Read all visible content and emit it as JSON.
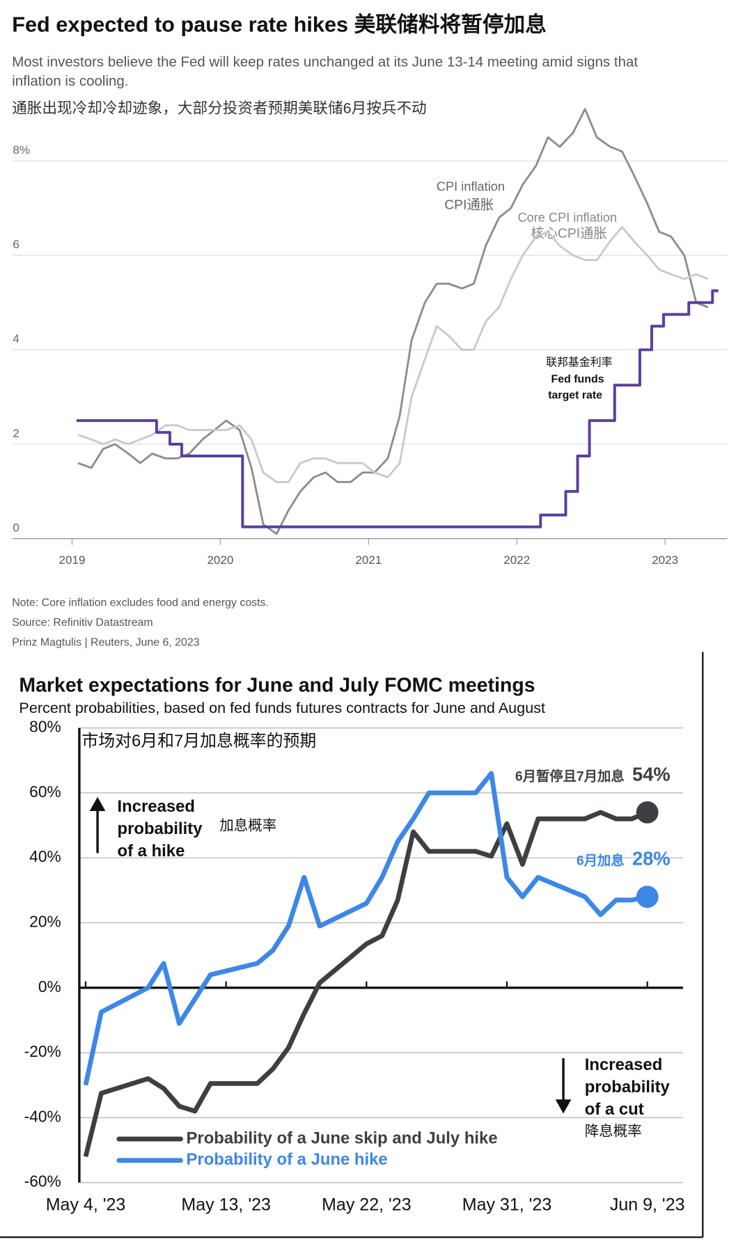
{
  "chart_data": [
    {
      "type": "line",
      "title": "Fed expected to pause rate hikes 美联储料将暂停加息",
      "subtitle": [
        "Most investors believe the Fed will keep rates unchanged at its June 13-14 meeting amid signs that",
        "inflation is cooling.",
        "通胀出现冷却冷却迹象，大部分投资者预期美联储6月按兵不动"
      ],
      "annotations": [
        "CPI inflation",
        "CPI通胀",
        "Core CPI inflation",
        "核心CPI通胀",
        "联邦基金利率",
        "Fed funds",
        "target rate"
      ],
      "notes": [
        "Note: Core inflation excludes food and energy costs.",
        "Source: Refinitiv Datastream",
        "Prinz Magtulis |  Reuters, June 6, 2023"
      ],
      "x": [
        2019.04,
        2019.13,
        2019.21,
        2019.29,
        2019.38,
        2019.46,
        2019.54,
        2019.63,
        2019.71,
        2019.79,
        2019.88,
        2019.96,
        2020.04,
        2020.13,
        2020.21,
        2020.29,
        2020.38,
        2020.46,
        2020.54,
        2020.63,
        2020.71,
        2020.79,
        2020.88,
        2020.96,
        2021.04,
        2021.13,
        2021.21,
        2021.29,
        2021.38,
        2021.46,
        2021.54,
        2021.63,
        2021.71,
        2021.79,
        2021.88,
        2021.96,
        2022.04,
        2022.13,
        2022.21,
        2022.29,
        2022.38,
        2022.46,
        2022.54,
        2022.63,
        2022.71,
        2022.79,
        2022.88,
        2022.96,
        2023.04,
        2023.13,
        2023.21,
        2023.29
      ],
      "series": [
        {
          "color": "#8c8c8c",
          "values": [
            1.6,
            1.5,
            1.9,
            2.0,
            1.8,
            1.6,
            1.8,
            1.7,
            1.7,
            1.8,
            2.1,
            2.3,
            2.5,
            2.3,
            1.5,
            0.3,
            0.1,
            0.6,
            1.0,
            1.3,
            1.4,
            1.2,
            1.2,
            1.4,
            1.4,
            1.7,
            2.6,
            4.2,
            5.0,
            5.4,
            5.4,
            5.3,
            5.4,
            6.2,
            6.8,
            7.0,
            7.5,
            7.9,
            8.5,
            8.3,
            8.6,
            9.1,
            8.5,
            8.3,
            8.2,
            7.7,
            7.1,
            6.5,
            6.4,
            6.0,
            5.0,
            4.9
          ]
        },
        {
          "color": "#c9c9c9",
          "values": [
            2.2,
            2.1,
            2.0,
            2.1,
            2.0,
            2.1,
            2.2,
            2.4,
            2.4,
            2.3,
            2.3,
            2.3,
            2.3,
            2.4,
            2.1,
            1.4,
            1.2,
            1.2,
            1.6,
            1.7,
            1.7,
            1.6,
            1.6,
            1.6,
            1.4,
            1.3,
            1.6,
            3.0,
            3.8,
            4.5,
            4.3,
            4.0,
            4.0,
            4.6,
            4.9,
            5.5,
            6.0,
            6.4,
            6.5,
            6.2,
            6.0,
            5.9,
            5.9,
            6.3,
            6.6,
            6.3,
            6.0,
            5.7,
            5.6,
            5.5,
            5.6,
            5.5
          ]
        },
        {
          "color": "#5b3f9e",
          "step": true,
          "x": [
            2019.03,
            2019.57,
            2019.66,
            2019.74,
            2020.15,
            2022.16,
            2022.33,
            2022.41,
            2022.49,
            2022.66,
            2022.83,
            2022.91,
            2022.99,
            2023.16,
            2023.32,
            2023.36
          ],
          "values": [
            2.5,
            2.25,
            2.0,
            1.75,
            0.25,
            0.5,
            1.0,
            1.75,
            2.5,
            3.25,
            4.0,
            4.5,
            4.75,
            5.0,
            5.25,
            5.25
          ]
        }
      ],
      "xlim": [
        2018.6,
        2023.42
      ],
      "xticks": [
        2019,
        2020,
        2021,
        2022,
        2023
      ],
      "ylim": [
        0,
        9
      ],
      "yticks": [
        0,
        2,
        4,
        6,
        {
          "value": 8,
          "label": "8%"
        }
      ],
      "grid": true
    },
    {
      "type": "line",
      "title": "Market expectations for June and July FOMC meetings",
      "subtitle": "Percent probabilities, based on fed funds futures contracts for June and August",
      "subtitle_zh": "市场对6月和7月加息概率的预期",
      "annotations": {
        "hike": [
          "Increased",
          "probability",
          "of a hike"
        ],
        "hike_zh": "加息概率",
        "cut": [
          "Increased",
          "probability",
          "of a cut"
        ],
        "cut_zh": "降息概率"
      },
      "x": [
        "2023-05-04",
        "2023-05-05",
        "2023-05-08",
        "2023-05-09",
        "2023-05-10",
        "2023-05-11",
        "2023-05-12",
        "2023-05-15",
        "2023-05-16",
        "2023-05-17",
        "2023-05-18",
        "2023-05-19",
        "2023-05-22",
        "2023-05-23",
        "2023-05-24",
        "2023-05-25",
        "2023-05-26",
        "2023-05-29",
        "2023-05-30",
        "2023-05-31",
        "2023-06-01",
        "2023-06-02",
        "2023-06-05",
        "2023-06-06",
        "2023-06-07",
        "2023-06-08",
        "2023-06-09"
      ],
      "series": [
        {
          "name": "Probability of a June skip and July hike",
          "color": "#3d3f42",
          "end_note": "6月暂停且7月加息",
          "values": [
            -52,
            -32.5,
            -28,
            -31,
            -36.5,
            -38,
            -29.5,
            -29.5,
            -25,
            -18.5,
            -8,
            1.5,
            13.5,
            16,
            27,
            48,
            42,
            42,
            40.5,
            50.5,
            38,
            52,
            52,
            54,
            52,
            52,
            54
          ],
          "value_labels": [
            null,
            null,
            null,
            null,
            null,
            null,
            null,
            null,
            null,
            null,
            null,
            null,
            null,
            null,
            null,
            null,
            null,
            null,
            null,
            null,
            null,
            null,
            null,
            null,
            null,
            null,
            "54%"
          ]
        },
        {
          "name": "Probability of a June hike",
          "color": "#3d87e6",
          "end_note": "6月加息",
          "values": [
            -30,
            -7.5,
            0,
            7.5,
            -11,
            -3.5,
            4,
            7.5,
            11.5,
            19,
            34,
            19,
            26,
            34,
            45,
            52,
            60,
            60,
            66,
            34,
            28,
            34,
            28,
            22.5,
            27,
            27,
            28
          ],
          "value_labels": [
            null,
            null,
            null,
            null,
            null,
            null,
            null,
            null,
            null,
            null,
            null,
            null,
            null,
            null,
            null,
            null,
            null,
            null,
            null,
            null,
            null,
            null,
            null,
            null,
            null,
            null,
            "28%"
          ]
        }
      ],
      "xlim": [
        "2023-05-04",
        "2023-06-09"
      ],
      "xticks": [
        {
          "value": "2023-05-04",
          "label": "May 4, '23"
        },
        {
          "value": "2023-05-13",
          "label": "May 13, '23"
        },
        {
          "value": "2023-05-22",
          "label": "May 22, '23"
        },
        {
          "value": "2023-05-31",
          "label": "May 31, '23"
        },
        {
          "value": "2023-06-09",
          "label": "Jun 9, '23"
        }
      ],
      "ylim": [
        -60,
        80
      ],
      "yticks": [
        {
          "value": -60,
          "label": "-60%"
        },
        {
          "value": -40,
          "label": "-40%"
        },
        {
          "value": -20,
          "label": "-20%"
        },
        {
          "value": 0,
          "label": "0%"
        },
        {
          "value": 20,
          "label": "20%"
        },
        {
          "value": 40,
          "label": "40%"
        },
        {
          "value": 60,
          "label": "60%"
        },
        {
          "value": 80,
          "label": "80%"
        }
      ],
      "grid": true
    }
  ]
}
